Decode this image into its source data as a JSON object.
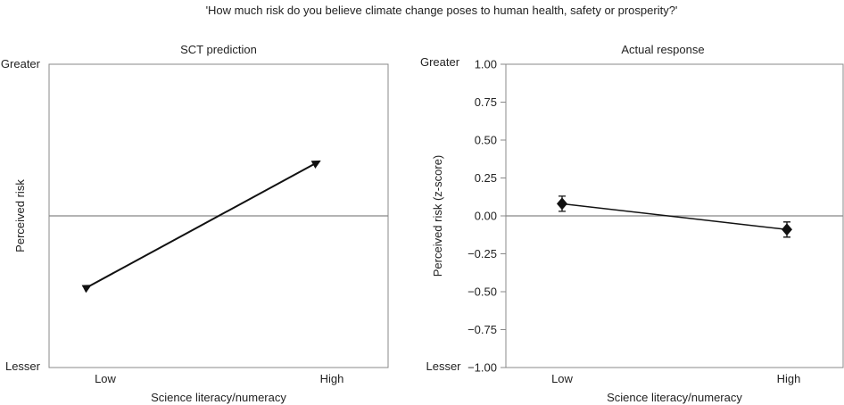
{
  "figure": {
    "title": "'How much risk do you believe climate change poses to human health, safety or prosperity?'"
  },
  "colors": {
    "line": "#111111",
    "axis": "#888888",
    "zero_line": "#888888",
    "text": "#222222"
  },
  "chart_data": [
    {
      "type": "line",
      "title": "SCT prediction",
      "xlabel": "Science literacy/numeracy",
      "ylabel": "Perceived risk",
      "categories": [
        "Low",
        "High"
      ],
      "y_tick_labels": {
        "top": "Greater",
        "bottom": "Lesser"
      },
      "ylim": [
        -1,
        1
      ],
      "series": [
        {
          "values": [
            -0.46,
            0.36
          ],
          "arrowheads": "both"
        }
      ],
      "reference_line": 0,
      "grid": false
    },
    {
      "type": "line",
      "title": "Actual response",
      "xlabel": "Science literacy/numeracy",
      "ylabel": "Perceived risk (z-score)",
      "categories": [
        "Low",
        "High"
      ],
      "y_tick_labels_side": {
        "top": "Greater",
        "bottom": "Lesser"
      },
      "yticks": [
        "1.00",
        "0.75",
        "0.50",
        "0.25",
        "0.00",
        "−0.25",
        "−0.50",
        "−0.75",
        "−1.00"
      ],
      "ylim": [
        -1,
        1
      ],
      "series": [
        {
          "values": [
            0.08,
            -0.09
          ],
          "error": [
            0.05,
            0.05
          ],
          "marker": "diamond"
        }
      ],
      "reference_line": 0,
      "grid": false
    }
  ]
}
